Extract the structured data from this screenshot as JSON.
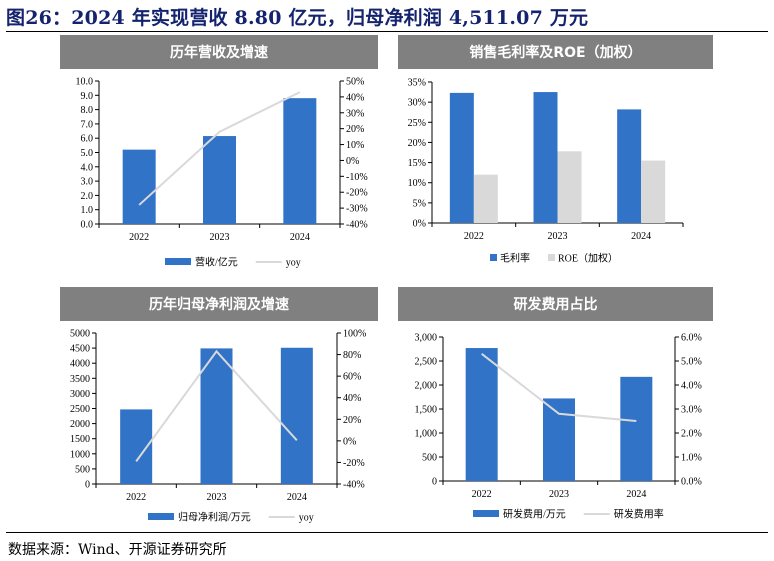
{
  "title": "图26：2024 年实现营收 8.80 亿元，归母净利润 4,511.07 万元",
  "source": "数据来源：Wind、开源证券研究所",
  "colors": {
    "bar_primary": "#3173c6",
    "bar_secondary": "#d9d9d9",
    "line": "#d9d9d9",
    "header_bg": "#808080",
    "title": "#14236e"
  },
  "chart_data": [
    {
      "title": "历年营收及增速",
      "type": "bar+line",
      "categories": [
        "2022",
        "2023",
        "2024"
      ],
      "series": [
        {
          "name": "营收/亿元",
          "type": "bar",
          "axis": "left",
          "values": [
            5.2,
            6.15,
            8.8
          ]
        },
        {
          "name": "yoy",
          "type": "line",
          "axis": "right",
          "values": [
            -28,
            18,
            43
          ]
        }
      ],
      "ylim_left": [
        0,
        10
      ],
      "ystep_left": 1,
      "yticks_left": [
        "0.0",
        "1.0",
        "2.0",
        "3.0",
        "4.0",
        "5.0",
        "6.0",
        "7.0",
        "8.0",
        "9.0",
        "10.0"
      ],
      "ylim_right": [
        -40,
        50
      ],
      "yticks_right": [
        "-40%",
        "-30%",
        "-20%",
        "-10%",
        "0%",
        "10%",
        "20%",
        "30%",
        "40%",
        "50%"
      ],
      "legend": "bottom",
      "grid": false
    },
    {
      "title": "销售毛利率及ROE（加权）",
      "type": "bar",
      "categories": [
        "2022",
        "2023",
        "2024"
      ],
      "series": [
        {
          "name": "毛利率",
          "type": "bar",
          "axis": "left",
          "values": [
            32.3,
            32.5,
            28.2
          ]
        },
        {
          "name": "ROE（加权）",
          "type": "bar",
          "axis": "left",
          "values": [
            12.0,
            17.8,
            15.5
          ]
        }
      ],
      "ylim_left": [
        0,
        35
      ],
      "yticks_left": [
        "0%",
        "5%",
        "10%",
        "15%",
        "20%",
        "25%",
        "30%",
        "35%"
      ],
      "legend": "bottom",
      "grid": false
    },
    {
      "title": "历年归母净利润及增速",
      "type": "bar+line",
      "categories": [
        "2022",
        "2023",
        "2024"
      ],
      "series": [
        {
          "name": "归母净利润/万元",
          "type": "bar",
          "axis": "left",
          "values": [
            2470,
            4490,
            4511.07
          ]
        },
        {
          "name": "yoy",
          "type": "line",
          "axis": "right",
          "values": [
            -19,
            83,
            0.5
          ]
        }
      ],
      "ylim_left": [
        0,
        5000
      ],
      "yticks_left": [
        "0",
        "500",
        "1000",
        "1500",
        "2000",
        "2500",
        "3000",
        "3500",
        "4000",
        "4500",
        "5000"
      ],
      "ylim_right": [
        -40,
        100
      ],
      "yticks_right": [
        "-40%",
        "-20%",
        "0%",
        "20%",
        "40%",
        "60%",
        "80%",
        "100%"
      ],
      "legend": "bottom",
      "grid": false
    },
    {
      "title": "研发费用占比",
      "type": "bar+line",
      "categories": [
        "2022",
        "2023",
        "2024"
      ],
      "series": [
        {
          "name": "研发费用/万元",
          "type": "bar",
          "axis": "left",
          "values": [
            2770,
            1720,
            2170
          ]
        },
        {
          "name": "研发费用率",
          "type": "line",
          "axis": "right",
          "values": [
            5.3,
            2.8,
            2.5
          ]
        }
      ],
      "ylim_left": [
        0,
        3000
      ],
      "yticks_left": [
        "0",
        "500",
        "1,000",
        "1,500",
        "2,000",
        "2,500",
        "3,000"
      ],
      "ylim_right": [
        0,
        6
      ],
      "yticks_right": [
        "0.0%",
        "1.0%",
        "2.0%",
        "3.0%",
        "4.0%",
        "5.0%",
        "6.0%"
      ],
      "legend": "bottom",
      "grid": false
    }
  ]
}
